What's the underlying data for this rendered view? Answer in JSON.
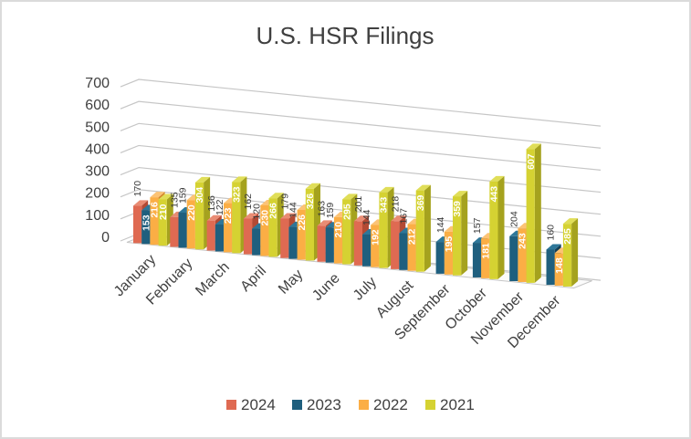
{
  "window": {
    "background": "#ffffff",
    "border_color": "#dbdbdb"
  },
  "chart_data": {
    "type": "bar",
    "variant": "3d-clustered-column",
    "title": "U.S. HSR Filings",
    "title_color": "#404040",
    "categories": [
      "January",
      "February",
      "March",
      "April",
      "May",
      "June",
      "July",
      "August",
      "September",
      "October",
      "November",
      "December"
    ],
    "series": [
      {
        "name": "2024",
        "front": "#DF6A52",
        "side": "#B34A34",
        "top": "#E98C74",
        "values": [
          170,
          135,
          136,
          162,
          179,
          163,
          201,
          218,
          null,
          null,
          null,
          null
        ]
      },
      {
        "name": "2023",
        "front": "#1F5F7E",
        "side": "#143F57",
        "top": "#2E7799",
        "values": [
          153,
          159,
          122,
          120,
          144,
          159,
          144,
          167,
          144,
          157,
          204,
          160
        ]
      },
      {
        "name": "2022",
        "front": "#FBAE45",
        "side": "#D3882B",
        "top": "#FCC375",
        "values": [
          216,
          220,
          223,
          230,
          226,
          210,
          192,
          212,
          195,
          181,
          243,
          148
        ]
      },
      {
        "name": "2021",
        "front": "#D5D232",
        "side": "#A5A21E",
        "top": "#E0DE58",
        "values": [
          210,
          304,
          323,
          266,
          326,
          295,
          343,
          369,
          359,
          443,
          607,
          285
        ]
      }
    ],
    "ylim": [
      0,
      700
    ],
    "ytick_step": 100,
    "yticks": [
      0,
      100,
      200,
      300,
      400,
      500,
      600,
      700
    ],
    "grid": true,
    "gridline_color": "#c6c6c6",
    "axis_label_color": "#404040",
    "legend_position": "bottom",
    "legend_labels": [
      "2024",
      "2023",
      "2022",
      "2021"
    ],
    "data_labels": true,
    "data_label_outside_color": "#3a3a3a",
    "data_label_inside_color": "#ffffff",
    "data_label_rules": {
      "outside_series": [
        "2024",
        "2023"
      ],
      "inside_series": [
        "2022",
        "2021"
      ],
      "inside_exceptions": [
        {
          "series": "2023",
          "category": "January"
        }
      ]
    }
  }
}
